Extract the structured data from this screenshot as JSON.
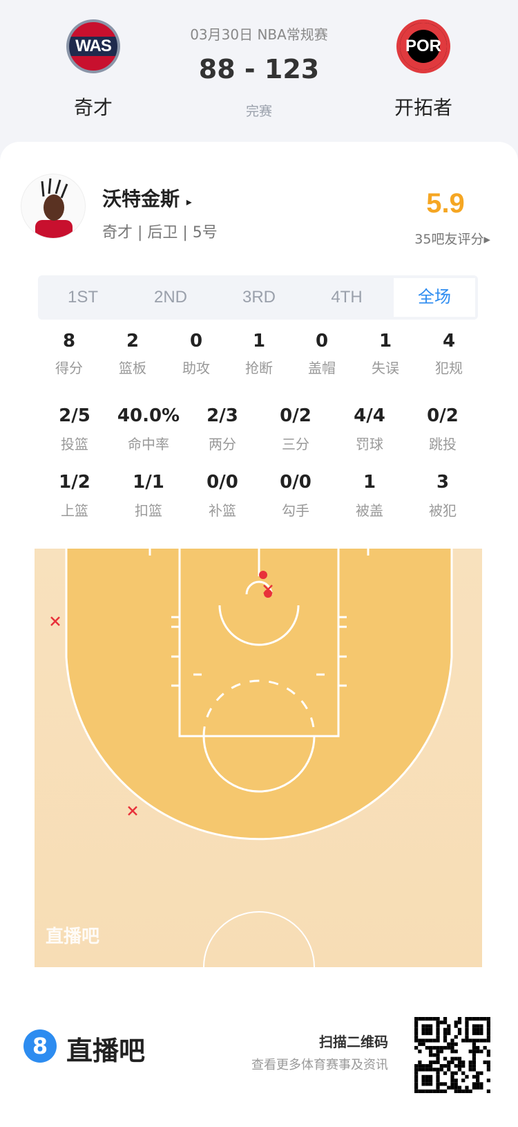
{
  "match": {
    "date_league": "03月30日 NBA常规赛",
    "score": "88 - 123",
    "status": "完赛",
    "home": {
      "abbr": "WAS",
      "name": "奇才"
    },
    "away": {
      "abbr": "POR",
      "name": "开拓者"
    }
  },
  "player": {
    "name": "沃特金斯",
    "arrow": "▸",
    "info": "奇才 | 后卫 | 5号",
    "rating": "5.9",
    "rating_label": "35吧友评分▸",
    "rating_color": "#f5a623"
  },
  "tabs": [
    {
      "label": "1ST"
    },
    {
      "label": "2ND"
    },
    {
      "label": "3RD"
    },
    {
      "label": "4TH"
    },
    {
      "label": "全场",
      "active": true
    }
  ],
  "stats_row1": [
    {
      "v": "8",
      "l": "得分"
    },
    {
      "v": "2",
      "l": "篮板"
    },
    {
      "v": "0",
      "l": "助攻"
    },
    {
      "v": "1",
      "l": "抢断"
    },
    {
      "v": "0",
      "l": "盖帽"
    },
    {
      "v": "1",
      "l": "失误"
    },
    {
      "v": "4",
      "l": "犯规"
    }
  ],
  "stats_row2": [
    {
      "v": "2/5",
      "l": "投篮"
    },
    {
      "v": "40.0%",
      "l": "命中率"
    },
    {
      "v": "2/3",
      "l": "两分"
    },
    {
      "v": "0/2",
      "l": "三分"
    },
    {
      "v": "4/4",
      "l": "罚球"
    },
    {
      "v": "0/2",
      "l": "跳投"
    }
  ],
  "stats_row3": [
    {
      "v": "1/2",
      "l": "上篮"
    },
    {
      "v": "1/1",
      "l": "扣篮"
    },
    {
      "v": "0/0",
      "l": "补篮"
    },
    {
      "v": "0/0",
      "l": "勾手"
    },
    {
      "v": "1",
      "l": "被盖"
    },
    {
      "v": "3",
      "l": "被犯"
    }
  ],
  "shot_chart": {
    "watermark": "直播吧",
    "shots": [
      {
        "result": "made"
      },
      {
        "result": "made"
      },
      {
        "result": "missed"
      },
      {
        "result": "missed"
      },
      {
        "result": "missed"
      }
    ],
    "made_color": "#e8313a",
    "miss_color": "#e8313a"
  },
  "footer": {
    "brand_icon": "8",
    "brand": "直播吧",
    "scan": "扫描二维码",
    "scan_sub": "查看更多体育赛事及资讯"
  },
  "colors": {
    "accent": "#2d8cf0",
    "court": "#f5c76e",
    "court_outer": "#f8e1bd"
  }
}
